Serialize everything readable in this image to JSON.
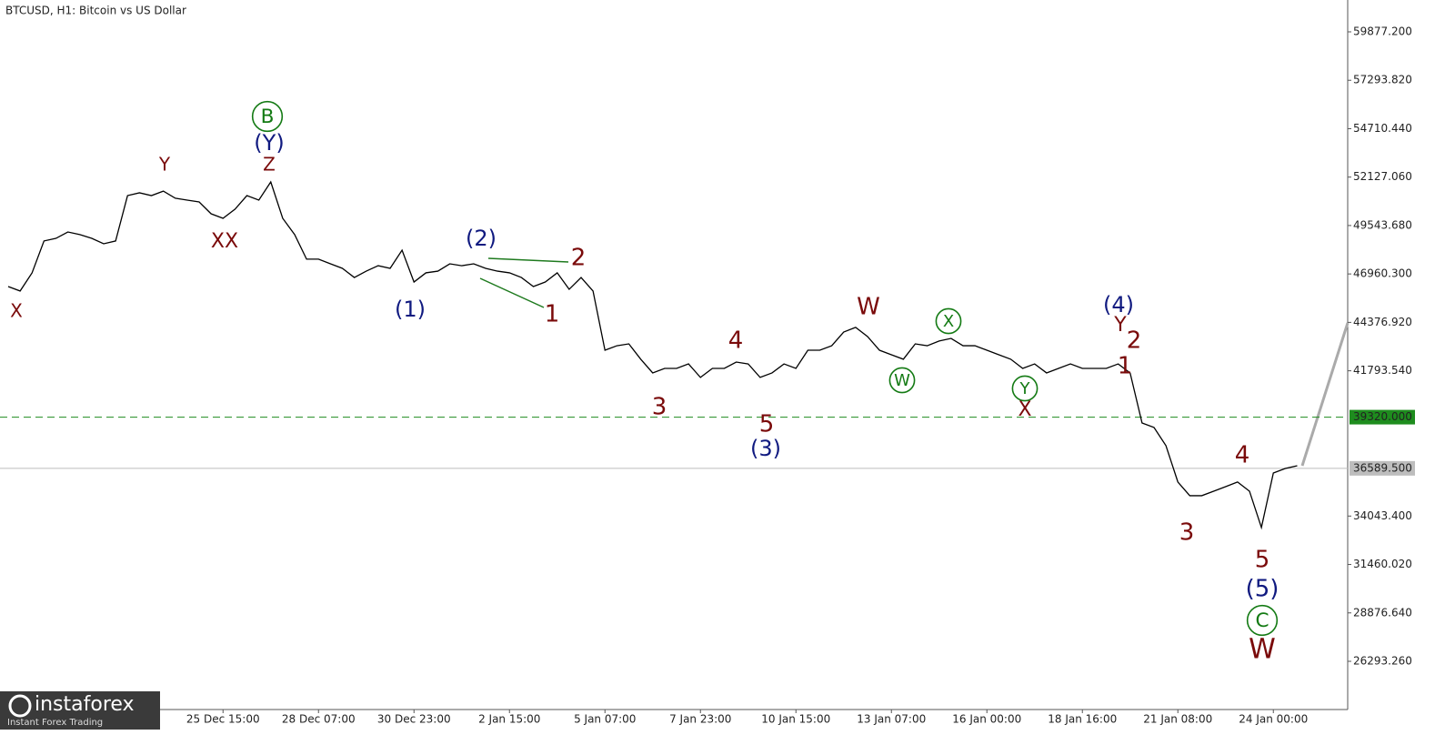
{
  "chart_data": {
    "type": "line",
    "title": "BTCUSD, H1:  Bitcoin vs US Dollar",
    "categories": [
      null,
      null,
      null,
      null,
      null,
      null,
      null,
      null,
      null,
      null,
      null,
      null,
      null,
      null,
      null,
      null,
      null,
      null,
      "25 Dec 15:00",
      null,
      null,
      null,
      null,
      null,
      null,
      null,
      "28 Dec 07:00",
      null,
      null,
      null,
      null,
      null,
      null,
      null,
      "30 Dec 23:00",
      null,
      null,
      null,
      null,
      null,
      null,
      null,
      "2 Jan 15:00",
      null,
      null,
      null,
      null,
      null,
      null,
      null,
      "5 Jan 07:00",
      null,
      null,
      null,
      null,
      null,
      null,
      null,
      "7 Jan 23:00",
      null,
      null,
      null,
      null,
      null,
      null,
      null,
      "10 Jan 15:00",
      null,
      null,
      null,
      null,
      null,
      null,
      null,
      "13 Jan 07:00",
      null,
      null,
      null,
      null,
      null,
      null,
      null,
      "16 Jan 00:00",
      null,
      null,
      null,
      null,
      null,
      null,
      null,
      "18 Jan 16:00",
      null,
      null,
      null,
      null,
      null,
      null,
      null,
      "21 Jan 08:00",
      null,
      null,
      null,
      null,
      null,
      null,
      null,
      "24 Jan 00:00",
      null,
      null
    ],
    "series": [
      {
        "name": "BTCUSD",
        "color": "#000000",
        "values": [
          46290,
          46050,
          47020,
          48720,
          48860,
          49200,
          49060,
          48860,
          48570,
          48720,
          51140,
          51290,
          51140,
          51380,
          51000,
          50900,
          50800,
          50170,
          49930,
          50410,
          51140,
          50900,
          51870,
          49930,
          49060,
          47750,
          47750,
          47500,
          47260,
          46770,
          47110,
          47400,
          47260,
          48230,
          46530,
          47020,
          47110,
          47500,
          47400,
          47500,
          47260,
          47110,
          47020,
          46770,
          46290,
          46530,
          47020,
          46140,
          46770,
          46050,
          42890,
          43130,
          43230,
          42410,
          41680,
          41920,
          41920,
          42160,
          41440,
          41920,
          41920,
          42260,
          42160,
          41440,
          41680,
          42160,
          41920,
          42890,
          42890,
          43130,
          43860,
          44110,
          43620,
          42890,
          42650,
          42410,
          43230,
          43130,
          43380,
          43520,
          43130,
          43130,
          42890,
          42650,
          42410,
          41920,
          42160,
          41680,
          41920,
          42160,
          41920,
          41920,
          41920,
          42160,
          41680,
          39010,
          38770,
          37800,
          35860,
          35130,
          35130,
          35370,
          35610,
          35860,
          35370,
          33430,
          36340,
          36580,
          36730
        ]
      }
    ],
    "ylim": [
      23721,
      61576
    ],
    "yticks": [
      {
        "value": 26293.26,
        "label": "26293.260"
      },
      {
        "value": 28876.64,
        "label": "28876.640"
      },
      {
        "value": 31460.02,
        "label": "31460.020"
      },
      {
        "value": 34043.4,
        "label": "34043.400"
      },
      {
        "value": 41793.54,
        "label": "41793.540"
      },
      {
        "value": 44376.92,
        "label": "44376.920"
      },
      {
        "value": 46960.3,
        "label": "46960.300"
      },
      {
        "value": 49543.68,
        "label": "49543.680"
      },
      {
        "value": 52127.06,
        "label": "52127.060"
      },
      {
        "value": 54710.44,
        "label": "54710.440"
      },
      {
        "value": 57293.82,
        "label": "57293.820"
      },
      {
        "value": 59877.2,
        "label": "59877.200"
      }
    ],
    "levels": [
      {
        "value": 39320,
        "label": "39320.000",
        "color": "#1e8c1e",
        "dash": true
      },
      {
        "value": 36589.5,
        "label": "36589.500",
        "color": "#bdbdbd",
        "dash": false
      }
    ],
    "annotations": [
      {
        "text": "X",
        "color": "#7a0a0a"
      },
      {
        "text": "Y",
        "color": "#7a0a0a"
      },
      {
        "text": "XX",
        "color": "#7a0a0a"
      },
      {
        "text": "Z",
        "color": "#7a0a0a"
      },
      {
        "text": "B",
        "color": "#137a13",
        "circled": true
      },
      {
        "text": "(Y)",
        "color": "#101a80"
      },
      {
        "text": "(1)",
        "color": "#101a80"
      },
      {
        "text": "(2)",
        "color": "#101a80"
      },
      {
        "text": "1",
        "color": "#7a0a0a"
      },
      {
        "text": "2",
        "color": "#7a0a0a"
      },
      {
        "text": "3",
        "color": "#7a0a0a"
      },
      {
        "text": "4",
        "color": "#7a0a0a"
      },
      {
        "text": "5",
        "color": "#7a0a0a"
      },
      {
        "text": "(3)",
        "color": "#101a80"
      },
      {
        "text": "W",
        "color": "#7a0a0a"
      },
      {
        "text": "W",
        "color": "#137a13",
        "circled": true
      },
      {
        "text": "X",
        "color": "#137a13",
        "circled": true
      },
      {
        "text": "Y",
        "color": "#137a13",
        "circled": true
      },
      {
        "text": "X",
        "color": "#7a0a0a"
      },
      {
        "text": "(4)",
        "color": "#101a80"
      },
      {
        "text": "Y",
        "color": "#7a0a0a"
      },
      {
        "text": "2",
        "color": "#7a0a0a"
      },
      {
        "text": "1",
        "color": "#7a0a0a"
      },
      {
        "text": "3",
        "color": "#7a0a0a"
      },
      {
        "text": "4",
        "color": "#7a0a0a"
      },
      {
        "text": "5",
        "color": "#7a0a0a"
      },
      {
        "text": "(5)",
        "color": "#101a80"
      },
      {
        "text": "C",
        "color": "#137a13",
        "circled": true
      },
      {
        "text": "W",
        "color": "#7a0a0a"
      }
    ]
  },
  "watermark": {
    "name": "instaforex",
    "tagline": "Instant Forex Trading"
  }
}
